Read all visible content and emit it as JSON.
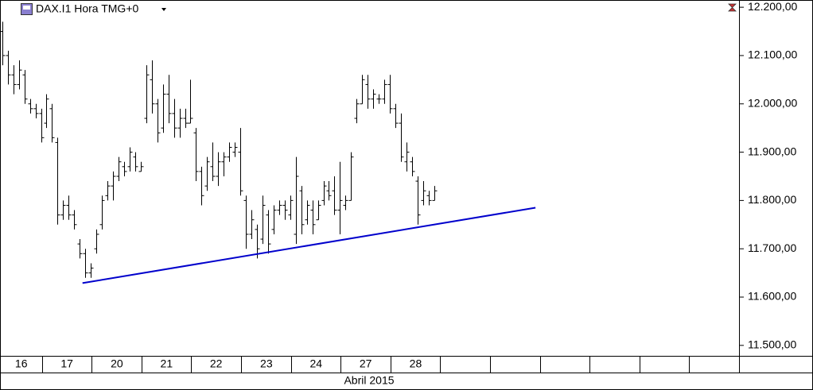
{
  "chart_data": {
    "type": "ohlc",
    "title": "DAX.I1 Hora TMG+0",
    "xlabel": "Abril 2015",
    "color": "#000000",
    "x": [
      0,
      1,
      2,
      3,
      4,
      5,
      6,
      7,
      8,
      9,
      10,
      11,
      12,
      13,
      14,
      15,
      16,
      17,
      18,
      19,
      20,
      21,
      22,
      23,
      24,
      25,
      26,
      27,
      28,
      29,
      30,
      31,
      32,
      33,
      34,
      35,
      36,
      37,
      38,
      39,
      40,
      41,
      42,
      43,
      44,
      45,
      46,
      47,
      48,
      49,
      50,
      51,
      52,
      53,
      54,
      55,
      56,
      57,
      58,
      59,
      60,
      61,
      62,
      63,
      64,
      65,
      66,
      67,
      68,
      69,
      70,
      71,
      72,
      73,
      74,
      75,
      76,
      77,
      78
    ],
    "open": [
      12150,
      12100,
      12060,
      12040,
      12060,
      12000,
      11990,
      11980,
      11960,
      11990,
      11920,
      11770,
      11790,
      11770,
      11710,
      11690,
      11650,
      11700,
      11750,
      11810,
      11830,
      11850,
      11870,
      11870,
      11890,
      11860,
      11970,
      12050,
      12000,
      11950,
      12020,
      11980,
      11950,
      11970,
      11960,
      11940,
      11860,
      11830,
      11870,
      11850,
      11880,
      11890,
      11900,
      11900,
      11800,
      11730,
      11740,
      11720,
      11770,
      11740,
      11780,
      11790,
      11770,
      11730,
      11820,
      11760,
      11780,
      11760,
      11800,
      11820,
      11820,
      11780,
      11790,
      11800,
      11970,
      12000,
      12040,
      12010,
      12010,
      12010,
      12040,
      11990,
      11960,
      11880,
      11880,
      11840,
      11800,
      11810,
      11800
    ],
    "high": [
      12170,
      12110,
      12080,
      12090,
      12070,
      12010,
      12000,
      11990,
      12020,
      12000,
      11930,
      11800,
      11810,
      11780,
      11720,
      11700,
      11670,
      11740,
      11810,
      11840,
      11860,
      11890,
      11880,
      11910,
      11900,
      11880,
      12080,
      12090,
      12010,
      12040,
      12060,
      12010,
      11990,
      11990,
      12050,
      11950,
      11870,
      11890,
      11920,
      11900,
      11900,
      11920,
      11920,
      11950,
      11810,
      11780,
      11750,
      11810,
      11780,
      11790,
      11800,
      11800,
      11810,
      11890,
      11830,
      11800,
      11800,
      11800,
      11840,
      11840,
      11850,
      11880,
      11810,
      11900,
      12010,
      12060,
      12060,
      12030,
      12020,
      12050,
      12060,
      12000,
      11980,
      11920,
      11890,
      11850,
      11840,
      11820,
      11830
    ],
    "low": [
      12080,
      12040,
      12020,
      12030,
      12000,
      11980,
      11970,
      11920,
      11950,
      11920,
      11750,
      11760,
      11760,
      11740,
      11680,
      11640,
      11640,
      11690,
      11740,
      11800,
      11800,
      11840,
      11850,
      11860,
      11860,
      11860,
      11960,
      11980,
      11920,
      11940,
      11960,
      11930,
      11930,
      11950,
      11960,
      11840,
      11790,
      11820,
      11840,
      11830,
      11850,
      11880,
      11890,
      11810,
      11700,
      11720,
      11680,
      11710,
      11690,
      11730,
      11770,
      11760,
      11760,
      11710,
      11730,
      11750,
      11730,
      11760,
      11790,
      11800,
      11770,
      11730,
      11780,
      11800,
      11960,
      12000,
      11990,
      11990,
      12000,
      12000,
      11980,
      11950,
      11880,
      11860,
      11850,
      11750,
      11790,
      11790,
      11800
    ],
    "close": [
      12100,
      12060,
      12040,
      12070,
      12010,
      11990,
      11980,
      11930,
      12010,
      11930,
      11770,
      11790,
      11770,
      11750,
      11690,
      11650,
      11660,
      11730,
      11800,
      11830,
      11850,
      11880,
      11860,
      11900,
      11870,
      11870,
      12060,
      12000,
      11940,
      12020,
      11980,
      11950,
      11970,
      11960,
      11970,
      11860,
      11810,
      11880,
      11850,
      11880,
      11890,
      11910,
      11910,
      11820,
      11730,
      11760,
      11700,
      11790,
      11710,
      11780,
      11790,
      11780,
      11800,
      11850,
      11750,
      11790,
      11750,
      11790,
      11830,
      11810,
      11780,
      11800,
      11800,
      11890,
      12000,
      12050,
      12010,
      12020,
      12010,
      12040,
      11990,
      11960,
      11890,
      11900,
      11860,
      11770,
      11820,
      11800,
      11820
    ],
    "xlim": [
      -0.4,
      133.2
    ],
    "ylim": [
      11480,
      12215
    ],
    "xticks": [
      {
        "value": -0.4,
        "label": "16"
      },
      {
        "value": 7.2,
        "label": "17"
      },
      {
        "value": 16.1,
        "label": "20"
      },
      {
        "value": 25.2,
        "label": "21"
      },
      {
        "value": 34.1,
        "label": "22"
      },
      {
        "value": 43.1,
        "label": "23"
      },
      {
        "value": 52.2,
        "label": "24"
      },
      {
        "value": 61.1,
        "label": "27"
      },
      {
        "value": 70.1,
        "label": "28"
      },
      79.1
    ],
    "yticks": [
      {
        "value": 11500,
        "label": "11.500,00"
      },
      {
        "value": 11600,
        "label": "11.600,00"
      },
      {
        "value": 11700,
        "label": "11.700,00"
      },
      {
        "value": 11800,
        "label": "11.800,00"
      },
      {
        "value": 11900,
        "label": "11.900,00"
      },
      {
        "value": 12000,
        "label": "12.000,00"
      },
      {
        "value": 12100,
        "label": "12.100,00"
      },
      {
        "value": 12200,
        "label": "12.200,00"
      }
    ],
    "trendline": {
      "x": [
        14.5,
        96.3
      ],
      "y": [
        11629,
        11785
      ],
      "color": "#0000cc"
    }
  }
}
